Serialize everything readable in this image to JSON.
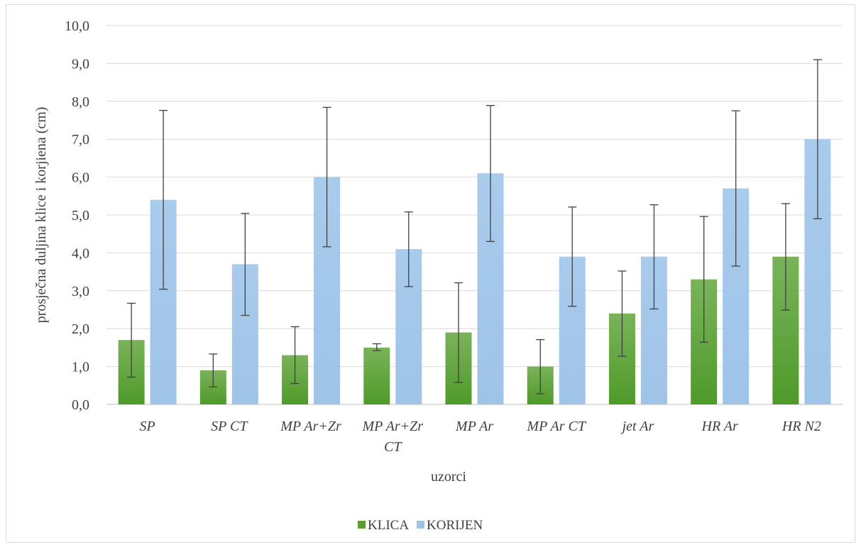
{
  "chart_data": {
    "type": "bar",
    "categories": [
      [
        "SP"
      ],
      [
        "SP CT"
      ],
      [
        "MP Ar+Zr"
      ],
      [
        "MP Ar+Zr",
        "CT"
      ],
      [
        "MP Ar"
      ],
      [
        "MP Ar CT"
      ],
      [
        "jet Ar"
      ],
      [
        "HR Ar"
      ],
      [
        "HR N2"
      ]
    ],
    "series": [
      {
        "name": "KLICA",
        "color": "#5c9e34",
        "values": [
          1.7,
          0.9,
          1.3,
          1.5,
          1.9,
          1.0,
          2.4,
          3.3,
          3.9
        ],
        "error_low": [
          0.72,
          0.46,
          0.55,
          1.42,
          0.58,
          0.28,
          1.27,
          1.64,
          2.49
        ],
        "error_high": [
          2.67,
          1.33,
          2.05,
          1.6,
          3.21,
          1.71,
          3.52,
          4.96,
          5.3
        ]
      },
      {
        "name": "KORIJEN",
        "color": "#9dc3e6",
        "values": [
          5.4,
          3.7,
          6.0,
          4.1,
          6.1,
          3.9,
          3.9,
          5.7,
          7.0
        ],
        "error_low": [
          3.04,
          2.35,
          4.16,
          3.11,
          4.3,
          2.59,
          2.52,
          3.65,
          4.9
        ],
        "error_high": [
          7.76,
          5.04,
          7.84,
          5.08,
          7.89,
          5.21,
          5.27,
          7.75,
          9.1
        ]
      }
    ],
    "yticks": [
      "0,0",
      "1,0",
      "2,0",
      "3,0",
      "4,0",
      "5,0",
      "6,0",
      "7,0",
      "8,0",
      "9,0",
      "10,0"
    ],
    "ylim": [
      0,
      10
    ],
    "xlabel": "uzorci",
    "ylabel": "prosječna duljina klice i korjiena (cm)",
    "grid": true,
    "legend_position": "bottom"
  }
}
